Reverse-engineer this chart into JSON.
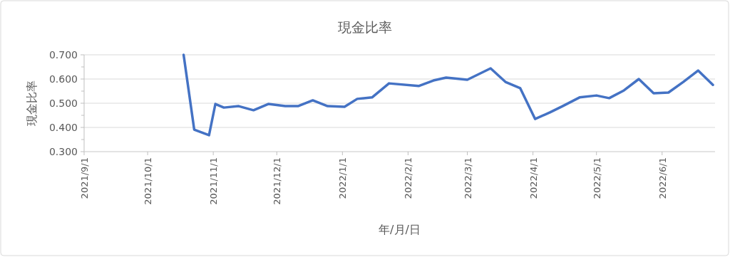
{
  "chart_data": {
    "type": "line",
    "title": "現金比率",
    "xlabel": "年/月/日",
    "ylabel": "現金比率",
    "grid": "y",
    "marker": "none",
    "line_style": "solid",
    "x": [
      "2021-10-18",
      "2021-10-23",
      "2021-10-30",
      "2021-11-02",
      "2021-11-06",
      "2021-11-13",
      "2021-11-20",
      "2021-11-27",
      "2021-12-05",
      "2021-12-11",
      "2021-12-18",
      "2021-12-25",
      "2022-01-02",
      "2022-01-08",
      "2022-01-15",
      "2022-01-23",
      "2022-02-06",
      "2022-02-13",
      "2022-02-19",
      "2022-03-01",
      "2022-03-12",
      "2022-03-19",
      "2022-03-26",
      "2022-04-02",
      "2022-04-09",
      "2022-04-15",
      "2022-04-23",
      "2022-05-01",
      "2022-05-07",
      "2022-05-14",
      "2022-05-21",
      "2022-05-28",
      "2022-06-04",
      "2022-06-11",
      "2022-06-18",
      "2022-06-25"
    ],
    "series": [
      {
        "color": "#4472c4",
        "values": [
          0.7,
          0.391,
          0.368,
          0.497,
          0.482,
          0.488,
          0.471,
          0.497,
          0.488,
          0.488,
          0.512,
          0.488,
          0.485,
          0.518,
          0.524,
          0.582,
          0.571,
          0.594,
          0.606,
          0.597,
          0.644,
          0.588,
          0.562,
          0.435,
          0.462,
          0.488,
          0.524,
          0.532,
          0.521,
          0.553,
          0.6,
          0.541,
          0.544,
          0.588,
          0.635,
          0.576
        ]
      }
    ],
    "xlim": [
      "2021-09-01",
      "2022-06-26"
    ],
    "ylim": [
      0.3,
      0.7
    ],
    "xticks": [
      {
        "value": "2021-09-01",
        "label": "2021/9/1"
      },
      {
        "value": "2021-10-01",
        "label": "2021/10/1"
      },
      {
        "value": "2021-11-01",
        "label": "2021/11/1"
      },
      {
        "value": "2021-12-01",
        "label": "2021/12/1"
      },
      {
        "value": "2022-01-01",
        "label": "2022/1/1"
      },
      {
        "value": "2022-02-01",
        "label": "2022/2/1"
      },
      {
        "value": "2022-03-01",
        "label": "2022/3/1"
      },
      {
        "value": "2022-04-01",
        "label": "2022/4/1"
      },
      {
        "value": "2022-05-01",
        "label": "2022/5/1"
      },
      {
        "value": "2022-06-01",
        "label": "2022/6/1"
      }
    ],
    "yticks": [
      {
        "value": 0.3,
        "label": "0.300"
      },
      {
        "value": 0.4,
        "label": "0.400"
      },
      {
        "value": 0.5,
        "label": "0.500"
      },
      {
        "value": 0.6,
        "label": "0.600"
      },
      {
        "value": 0.7,
        "label": "0.700"
      }
    ]
  }
}
